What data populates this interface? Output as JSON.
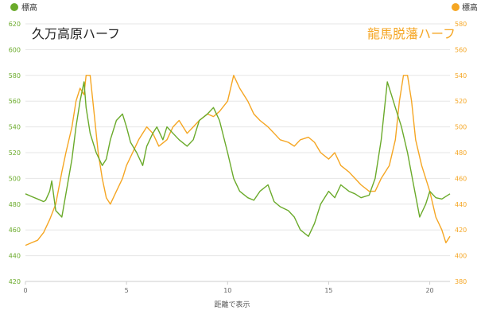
{
  "chart_data": {
    "type": "line",
    "xlabel": "距離で表示",
    "xlim": [
      0,
      21
    ],
    "x_ticks": [
      "0",
      "5",
      "10",
      "15",
      "20"
    ],
    "y_left": {
      "label": "標高",
      "ylim": [
        420,
        620
      ],
      "ticks": [
        "420",
        "440",
        "460",
        "480",
        "500",
        "520",
        "540",
        "560",
        "580",
        "600",
        "620"
      ],
      "color": "#6aaa2a"
    },
    "y_right": {
      "label": "標高",
      "ylim": [
        380,
        580
      ],
      "ticks": [
        "380",
        "400",
        "420",
        "440",
        "460",
        "480",
        "500",
        "520",
        "540",
        "560",
        "580"
      ],
      "color": "#f5a623"
    },
    "legend": [
      {
        "label": "標高",
        "color": "#6aaa2a",
        "position": "top-left"
      },
      {
        "label": "標高",
        "color": "#f5a623",
        "position": "top-right"
      }
    ],
    "series": [
      {
        "name": "久万高原ハーフ",
        "axis": "left",
        "color": "#6aaa2a",
        "x": [
          0,
          0.3,
          0.6,
          0.9,
          1.0,
          1.2,
          1.3,
          1.5,
          1.8,
          2.0,
          2.3,
          2.5,
          2.7,
          2.9,
          3.0,
          3.2,
          3.5,
          3.8,
          4.0,
          4.2,
          4.5,
          4.8,
          5.0,
          5.2,
          5.5,
          5.8,
          6.0,
          6.3,
          6.5,
          6.8,
          7.0,
          7.3,
          7.6,
          8.0,
          8.3,
          8.6,
          9.0,
          9.3,
          9.6,
          10.0,
          10.3,
          10.6,
          11.0,
          11.3,
          11.6,
          12.0,
          12.3,
          12.6,
          13.0,
          13.3,
          13.6,
          14.0,
          14.3,
          14.6,
          15.0,
          15.3,
          15.6,
          16.0,
          16.3,
          16.6,
          17.0,
          17.3,
          17.6,
          17.9,
          18.1,
          18.3,
          18.6,
          18.9,
          19.2,
          19.5,
          19.8,
          20.0,
          20.3,
          20.6,
          21.0
        ],
        "y": [
          488,
          486,
          484,
          482,
          483,
          490,
          498,
          475,
          470,
          488,
          515,
          540,
          560,
          575,
          555,
          535,
          520,
          510,
          515,
          530,
          545,
          550,
          540,
          528,
          520,
          510,
          525,
          535,
          540,
          530,
          540,
          535,
          530,
          525,
          530,
          545,
          550,
          555,
          545,
          520,
          500,
          490,
          485,
          483,
          490,
          495,
          482,
          478,
          475,
          470,
          460,
          455,
          465,
          480,
          490,
          485,
          495,
          490,
          488,
          485,
          487,
          500,
          530,
          575,
          565,
          555,
          540,
          520,
          495,
          470,
          480,
          490,
          485,
          484,
          488
        ]
      },
      {
        "name": "龍馬脱藩ハーフ",
        "axis": "right",
        "color": "#f5a623",
        "x": [
          0,
          0.3,
          0.6,
          0.9,
          1.2,
          1.5,
          1.8,
          2.0,
          2.3,
          2.5,
          2.7,
          2.9,
          3.0,
          3.2,
          3.4,
          3.6,
          3.8,
          4.0,
          4.2,
          4.5,
          4.8,
          5.0,
          5.3,
          5.6,
          6.0,
          6.3,
          6.6,
          7.0,
          7.3,
          7.6,
          8.0,
          8.3,
          8.6,
          9.0,
          9.3,
          9.6,
          10.0,
          10.3,
          10.6,
          11.0,
          11.3,
          11.6,
          12.0,
          12.3,
          12.6,
          13.0,
          13.3,
          13.6,
          14.0,
          14.3,
          14.6,
          15.0,
          15.3,
          15.6,
          16.0,
          16.3,
          16.6,
          17.0,
          17.3,
          17.6,
          18.0,
          18.3,
          18.5,
          18.7,
          18.9,
          19.1,
          19.3,
          19.6,
          20.0,
          20.3,
          20.6,
          20.8,
          21.0
        ],
        "y": [
          408,
          410,
          412,
          418,
          428,
          440,
          465,
          480,
          500,
          520,
          530,
          525,
          540,
          540,
          510,
          480,
          460,
          445,
          440,
          450,
          460,
          470,
          480,
          490,
          500,
          495,
          485,
          490,
          500,
          505,
          495,
          500,
          505,
          510,
          508,
          512,
          520,
          540,
          530,
          520,
          510,
          505,
          500,
          495,
          490,
          488,
          485,
          490,
          492,
          488,
          480,
          475,
          480,
          470,
          465,
          460,
          455,
          450,
          450,
          460,
          470,
          490,
          520,
          540,
          540,
          520,
          490,
          470,
          450,
          430,
          420,
          410,
          415
        ]
      }
    ],
    "annotations": [
      {
        "text": "久万高原ハーフ",
        "color": "#222222"
      },
      {
        "text": "龍馬脱藩ハーフ",
        "color": "#f5a623"
      }
    ]
  }
}
